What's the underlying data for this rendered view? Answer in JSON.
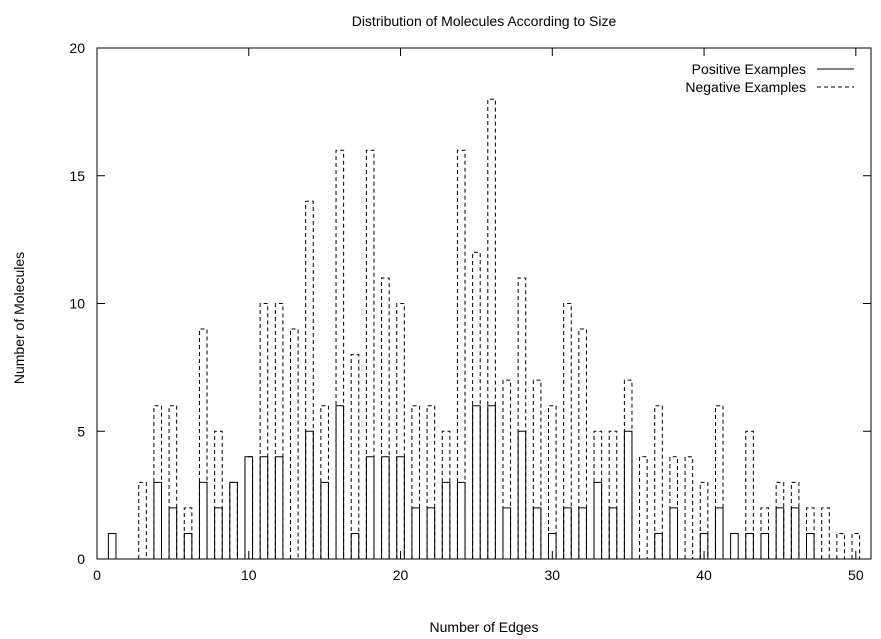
{
  "chart_data": {
    "type": "bar",
    "title": "Distribution of Molecules According to Size",
    "xlabel": "Number of Edges",
    "ylabel": "Number of Molecules",
    "xlim": [
      0,
      51
    ],
    "ylim": [
      0,
      20
    ],
    "xticks": [
      0,
      10,
      20,
      30,
      40,
      50
    ],
    "yticks": [
      0,
      5,
      10,
      15,
      20
    ],
    "grid": false,
    "legend_position": "top-right",
    "x": [
      1,
      2,
      3,
      4,
      5,
      6,
      7,
      8,
      9,
      10,
      11,
      12,
      13,
      14,
      15,
      16,
      17,
      18,
      19,
      20,
      21,
      22,
      23,
      24,
      25,
      26,
      27,
      28,
      29,
      30,
      31,
      32,
      33,
      34,
      35,
      36,
      37,
      38,
      39,
      40,
      41,
      42,
      43,
      44,
      45,
      46,
      47,
      48,
      49,
      50
    ],
    "series": [
      {
        "name": "Positive Examples",
        "line_style": "solid",
        "values": [
          1,
          0,
          0,
          3,
          2,
          1,
          3,
          2,
          3,
          4,
          4,
          4,
          0,
          5,
          3,
          6,
          1,
          4,
          4,
          4,
          2,
          2,
          3,
          3,
          6,
          6,
          2,
          5,
          2,
          1,
          2,
          2,
          3,
          2,
          5,
          0,
          1,
          2,
          0,
          1,
          2,
          1,
          1,
          1,
          2,
          2,
          1,
          0,
          0,
          0
        ]
      },
      {
        "name": "Negative Examples",
        "line_style": "dashed",
        "values": [
          0,
          0,
          3,
          6,
          6,
          2,
          9,
          5,
          3,
          4,
          10,
          10,
          9,
          14,
          6,
          16,
          8,
          16,
          11,
          10,
          6,
          6,
          5,
          16,
          12,
          18,
          7,
          11,
          7,
          6,
          10,
          9,
          5,
          5,
          7,
          4,
          6,
          4,
          4,
          3,
          6,
          0,
          5,
          2,
          3,
          3,
          2,
          2,
          1,
          1
        ]
      }
    ]
  }
}
